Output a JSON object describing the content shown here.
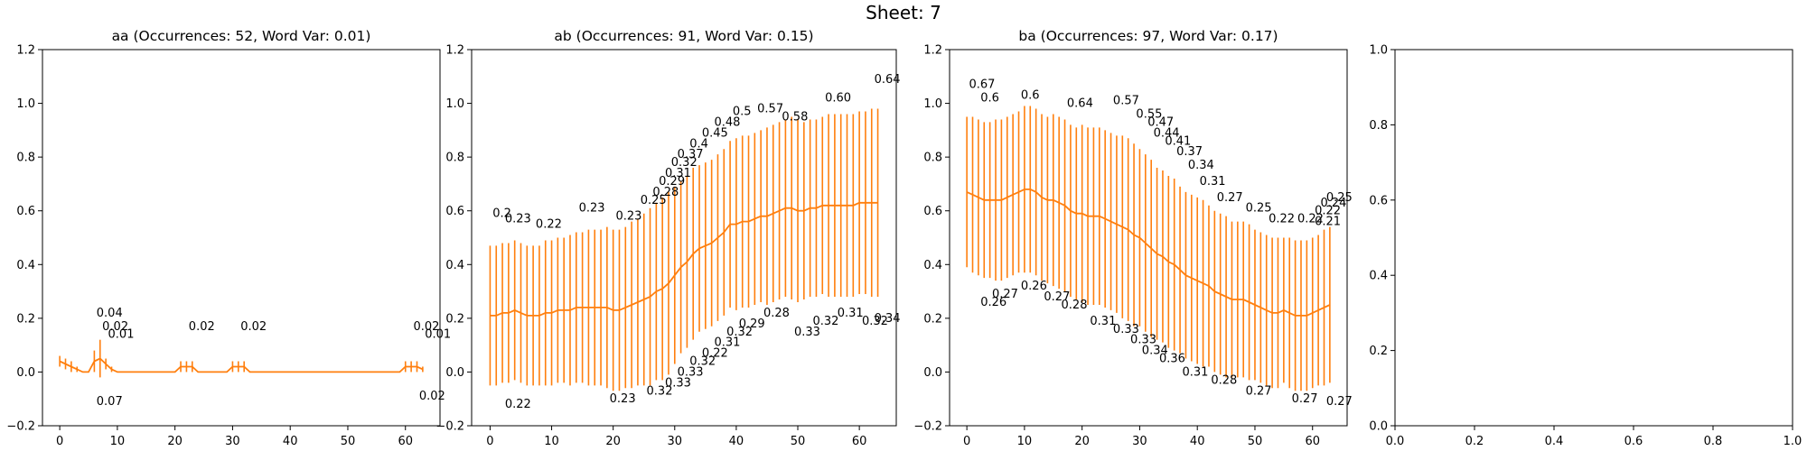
{
  "figure": {
    "suptitle": "Sheet: 7"
  },
  "colors": {
    "series": "#ff7f0e",
    "text": "#000000"
  },
  "chart_data": [
    {
      "type": "line",
      "title": "aa (Occurrences: 52, Word Var: 0.01)",
      "xlim": [
        -3,
        66
      ],
      "ylim": [
        -0.2,
        1.2
      ],
      "xticks": [
        0,
        10,
        20,
        30,
        40,
        50,
        60
      ],
      "yticks": [
        -0.2,
        0.0,
        0.2,
        0.4,
        0.6,
        0.8,
        1.0,
        1.2
      ],
      "ytick_labels": [
        "−0.2",
        "0.0",
        "0.2",
        "0.4",
        "0.6",
        "0.8",
        "1.0",
        "1.2"
      ],
      "error_bars": true,
      "mean": [
        0.04,
        0.03,
        0.02,
        0.01,
        0.0,
        0.0,
        0.04,
        0.05,
        0.03,
        0.01,
        0.0,
        0.0,
        0.0,
        0.0,
        0.0,
        0.0,
        0.0,
        0.0,
        0.0,
        0.0,
        0.0,
        0.02,
        0.02,
        0.02,
        0.0,
        0.0,
        0.0,
        0.0,
        0.0,
        0.0,
        0.02,
        0.02,
        0.02,
        0.0,
        0.0,
        0.0,
        0.0,
        0.0,
        0.0,
        0.0,
        0.0,
        0.0,
        0.0,
        0.0,
        0.0,
        0.0,
        0.0,
        0.0,
        0.0,
        0.0,
        0.0,
        0.0,
        0.0,
        0.0,
        0.0,
        0.0,
        0.0,
        0.0,
        0.0,
        0.0,
        0.02,
        0.02,
        0.02,
        0.01
      ],
      "spread": [
        0.02,
        0.02,
        0.02,
        0.01,
        0.0,
        0.0,
        0.04,
        0.07,
        0.02,
        0.01,
        0.0,
        0.0,
        0.0,
        0.0,
        0.0,
        0.0,
        0.0,
        0.0,
        0.0,
        0.0,
        0.0,
        0.02,
        0.02,
        0.02,
        0.0,
        0.0,
        0.0,
        0.0,
        0.0,
        0.0,
        0.02,
        0.02,
        0.02,
        0.0,
        0.0,
        0.0,
        0.0,
        0.0,
        0.0,
        0.0,
        0.0,
        0.0,
        0.0,
        0.0,
        0.0,
        0.0,
        0.0,
        0.0,
        0.0,
        0.0,
        0.0,
        0.0,
        0.0,
        0.0,
        0.0,
        0.0,
        0.0,
        0.0,
        0.0,
        0.0,
        0.02,
        0.02,
        0.02,
        0.01
      ],
      "upper_labels": [
        {
          "x": 7,
          "y": 0.22,
          "text": "0.04"
        },
        {
          "x": 8,
          "y": 0.17,
          "text": "0.02"
        },
        {
          "x": 9,
          "y": 0.14,
          "text": "0.01"
        },
        {
          "x": 23,
          "y": 0.17,
          "text": "0.02"
        },
        {
          "x": 32,
          "y": 0.17,
          "text": "0.02"
        },
        {
          "x": 62,
          "y": 0.17,
          "text": "0.02"
        },
        {
          "x": 64,
          "y": 0.14,
          "text": "0.01"
        }
      ],
      "lower_labels": [
        {
          "x": 7,
          "y": -0.11,
          "text": "0.07"
        },
        {
          "x": 63,
          "y": -0.09,
          "text": "0.02"
        }
      ]
    },
    {
      "type": "line",
      "title": "ab (Occurrences: 91, Word Var: 0.15)",
      "xlim": [
        -3,
        66
      ],
      "ylim": [
        -0.2,
        1.2
      ],
      "xticks": [
        0,
        10,
        20,
        30,
        40,
        50,
        60
      ],
      "yticks": [
        -0.2,
        0.0,
        0.2,
        0.4,
        0.6,
        0.8,
        1.0,
        1.2
      ],
      "ytick_labels": [
        "−0.2",
        "0.0",
        "0.2",
        "0.4",
        "0.6",
        "0.8",
        "1.0",
        "1.2"
      ],
      "error_bars": true,
      "mean": [
        0.21,
        0.21,
        0.22,
        0.22,
        0.23,
        0.22,
        0.21,
        0.21,
        0.21,
        0.22,
        0.22,
        0.23,
        0.23,
        0.23,
        0.24,
        0.24,
        0.24,
        0.24,
        0.24,
        0.24,
        0.23,
        0.23,
        0.24,
        0.25,
        0.26,
        0.27,
        0.28,
        0.3,
        0.31,
        0.33,
        0.36,
        0.39,
        0.41,
        0.44,
        0.46,
        0.47,
        0.48,
        0.5,
        0.52,
        0.55,
        0.55,
        0.56,
        0.56,
        0.57,
        0.58,
        0.58,
        0.59,
        0.6,
        0.61,
        0.61,
        0.6,
        0.6,
        0.61,
        0.61,
        0.62,
        0.62,
        0.62,
        0.62,
        0.62,
        0.62,
        0.63,
        0.63,
        0.63,
        0.63
      ],
      "spread": [
        0.26,
        0.26,
        0.26,
        0.26,
        0.26,
        0.26,
        0.26,
        0.26,
        0.26,
        0.27,
        0.27,
        0.27,
        0.27,
        0.28,
        0.28,
        0.28,
        0.29,
        0.29,
        0.29,
        0.3,
        0.3,
        0.3,
        0.3,
        0.31,
        0.31,
        0.32,
        0.33,
        0.33,
        0.34,
        0.34,
        0.33,
        0.32,
        0.32,
        0.32,
        0.31,
        0.31,
        0.31,
        0.31,
        0.31,
        0.31,
        0.32,
        0.32,
        0.32,
        0.32,
        0.32,
        0.33,
        0.33,
        0.33,
        0.33,
        0.34,
        0.34,
        0.33,
        0.33,
        0.33,
        0.33,
        0.34,
        0.34,
        0.34,
        0.34,
        0.34,
        0.34,
        0.34,
        0.35,
        0.35
      ],
      "upper_labels": [
        {
          "x": 1,
          "y": 0.59,
          "text": "0.2"
        },
        {
          "x": 3,
          "y": 0.57,
          "text": "0.23"
        },
        {
          "x": 8,
          "y": 0.55,
          "text": "0.22"
        },
        {
          "x": 15,
          "y": 0.61,
          "text": "0.23"
        },
        {
          "x": 21,
          "y": 0.58,
          "text": "0.23"
        },
        {
          "x": 25,
          "y": 0.64,
          "text": "0.25"
        },
        {
          "x": 27,
          "y": 0.67,
          "text": "0.28"
        },
        {
          "x": 28,
          "y": 0.71,
          "text": "0.29"
        },
        {
          "x": 29,
          "y": 0.74,
          "text": "0.31"
        },
        {
          "x": 30,
          "y": 0.78,
          "text": "0.32"
        },
        {
          "x": 31,
          "y": 0.81,
          "text": "0.37"
        },
        {
          "x": 33,
          "y": 0.85,
          "text": "0.4"
        },
        {
          "x": 35,
          "y": 0.89,
          "text": "0.45"
        },
        {
          "x": 37,
          "y": 0.93,
          "text": "0.48"
        },
        {
          "x": 40,
          "y": 0.97,
          "text": "0.5"
        },
        {
          "x": 44,
          "y": 0.98,
          "text": "0.57"
        },
        {
          "x": 48,
          "y": 0.95,
          "text": "0.58"
        },
        {
          "x": 55,
          "y": 1.02,
          "text": "0.60"
        },
        {
          "x": 63,
          "y": 1.09,
          "text": "0.64"
        }
      ],
      "lower_labels": [
        {
          "x": 3,
          "y": -0.12,
          "text": "0.22"
        },
        {
          "x": 20,
          "y": -0.1,
          "text": "0.23"
        },
        {
          "x": 26,
          "y": -0.07,
          "text": "0.32"
        },
        {
          "x": 29,
          "y": -0.04,
          "text": "0.33"
        },
        {
          "x": 31,
          "y": 0.0,
          "text": "0.33"
        },
        {
          "x": 33,
          "y": 0.04,
          "text": "0.32"
        },
        {
          "x": 35,
          "y": 0.07,
          "text": "0.22"
        },
        {
          "x": 37,
          "y": 0.11,
          "text": "0.31"
        },
        {
          "x": 39,
          "y": 0.15,
          "text": "0.32"
        },
        {
          "x": 41,
          "y": 0.18,
          "text": "0.29"
        },
        {
          "x": 45,
          "y": 0.22,
          "text": "0.28"
        },
        {
          "x": 50,
          "y": 0.15,
          "text": "0.33"
        },
        {
          "x": 53,
          "y": 0.19,
          "text": "0.32"
        },
        {
          "x": 57,
          "y": 0.22,
          "text": "0.31"
        },
        {
          "x": 61,
          "y": 0.19,
          "text": "0.32"
        },
        {
          "x": 63,
          "y": 0.2,
          "text": "0.34"
        }
      ]
    },
    {
      "type": "line",
      "title": "ba (Occurrences: 97, Word Var: 0.17)",
      "xlim": [
        -3,
        66
      ],
      "ylim": [
        -0.2,
        1.2
      ],
      "xticks": [
        0,
        10,
        20,
        30,
        40,
        50,
        60
      ],
      "yticks": [
        -0.2,
        0.0,
        0.2,
        0.4,
        0.6,
        0.8,
        1.0,
        1.2
      ],
      "ytick_labels": [
        "−0.2",
        "0.0",
        "0.2",
        "0.4",
        "0.6",
        "0.8",
        "1.0",
        "1.2"
      ],
      "error_bars": true,
      "mean": [
        0.67,
        0.66,
        0.65,
        0.64,
        0.64,
        0.64,
        0.64,
        0.65,
        0.66,
        0.67,
        0.68,
        0.68,
        0.67,
        0.65,
        0.64,
        0.64,
        0.63,
        0.62,
        0.6,
        0.59,
        0.59,
        0.58,
        0.58,
        0.58,
        0.57,
        0.56,
        0.55,
        0.54,
        0.53,
        0.51,
        0.5,
        0.48,
        0.46,
        0.44,
        0.43,
        0.41,
        0.4,
        0.38,
        0.36,
        0.35,
        0.34,
        0.33,
        0.32,
        0.3,
        0.29,
        0.28,
        0.27,
        0.27,
        0.27,
        0.26,
        0.25,
        0.24,
        0.23,
        0.22,
        0.22,
        0.23,
        0.22,
        0.21,
        0.21,
        0.21,
        0.22,
        0.23,
        0.24,
        0.25
      ],
      "spread": [
        0.28,
        0.29,
        0.29,
        0.29,
        0.29,
        0.3,
        0.3,
        0.3,
        0.3,
        0.3,
        0.31,
        0.31,
        0.31,
        0.31,
        0.31,
        0.32,
        0.32,
        0.32,
        0.32,
        0.32,
        0.33,
        0.33,
        0.33,
        0.33,
        0.33,
        0.33,
        0.33,
        0.34,
        0.34,
        0.34,
        0.33,
        0.33,
        0.33,
        0.32,
        0.32,
        0.32,
        0.32,
        0.31,
        0.31,
        0.31,
        0.31,
        0.31,
        0.3,
        0.3,
        0.3,
        0.3,
        0.29,
        0.29,
        0.29,
        0.29,
        0.28,
        0.28,
        0.28,
        0.28,
        0.28,
        0.27,
        0.28,
        0.28,
        0.28,
        0.28,
        0.28,
        0.28,
        0.29,
        0.29
      ],
      "upper_labels": [
        {
          "x": 1,
          "y": 1.07,
          "text": "0.67"
        },
        {
          "x": 3,
          "y": 1.02,
          "text": "0.6"
        },
        {
          "x": 10,
          "y": 1.03,
          "text": "0.6"
        },
        {
          "x": 18,
          "y": 1.0,
          "text": "0.64"
        },
        {
          "x": 26,
          "y": 1.01,
          "text": "0.57"
        },
        {
          "x": 30,
          "y": 0.96,
          "text": "0.55"
        },
        {
          "x": 32,
          "y": 0.93,
          "text": "0.47"
        },
        {
          "x": 33,
          "y": 0.89,
          "text": "0.44"
        },
        {
          "x": 35,
          "y": 0.86,
          "text": "0.41"
        },
        {
          "x": 37,
          "y": 0.82,
          "text": "0.37"
        },
        {
          "x": 39,
          "y": 0.77,
          "text": "0.34"
        },
        {
          "x": 41,
          "y": 0.71,
          "text": "0.31"
        },
        {
          "x": 44,
          "y": 0.65,
          "text": "0.27"
        },
        {
          "x": 49,
          "y": 0.61,
          "text": "0.25"
        },
        {
          "x": 53,
          "y": 0.57,
          "text": "0.22"
        },
        {
          "x": 58,
          "y": 0.57,
          "text": "0.22"
        },
        {
          "x": 61,
          "y": 0.56,
          "text": "0.21"
        },
        {
          "x": 61,
          "y": 0.6,
          "text": "0.22"
        },
        {
          "x": 62,
          "y": 0.63,
          "text": "0.24"
        },
        {
          "x": 63,
          "y": 0.65,
          "text": "0.25"
        }
      ],
      "lower_labels": [
        {
          "x": 3,
          "y": 0.26,
          "text": "0.26"
        },
        {
          "x": 5,
          "y": 0.29,
          "text": "0.27"
        },
        {
          "x": 10,
          "y": 0.32,
          "text": "0.26"
        },
        {
          "x": 14,
          "y": 0.28,
          "text": "0.27"
        },
        {
          "x": 17,
          "y": 0.25,
          "text": "0.28"
        },
        {
          "x": 22,
          "y": 0.19,
          "text": "0.31"
        },
        {
          "x": 26,
          "y": 0.16,
          "text": "0.33"
        },
        {
          "x": 29,
          "y": 0.12,
          "text": "0.33"
        },
        {
          "x": 31,
          "y": 0.08,
          "text": "0.34"
        },
        {
          "x": 34,
          "y": 0.05,
          "text": "0.36"
        },
        {
          "x": 38,
          "y": 0.0,
          "text": "0.31"
        },
        {
          "x": 43,
          "y": -0.03,
          "text": "0.28"
        },
        {
          "x": 49,
          "y": -0.07,
          "text": "0.27"
        },
        {
          "x": 57,
          "y": -0.1,
          "text": "0.27"
        },
        {
          "x": 63,
          "y": -0.11,
          "text": "0.27"
        }
      ]
    },
    {
      "type": "line",
      "title": "",
      "empty": true,
      "xlim": [
        0,
        1
      ],
      "ylim": [
        0,
        1
      ],
      "xticks": [
        0.0,
        0.2,
        0.4,
        0.6,
        0.8,
        1.0
      ],
      "xtick_labels": [
        "0.0",
        "0.2",
        "0.4",
        "0.6",
        "0.8",
        "1.0"
      ],
      "yticks": [
        0.0,
        0.2,
        0.4,
        0.6,
        0.8,
        1.0
      ],
      "ytick_labels": [
        "0.0",
        "0.2",
        "0.4",
        "0.6",
        "0.8",
        "1.0"
      ]
    }
  ]
}
